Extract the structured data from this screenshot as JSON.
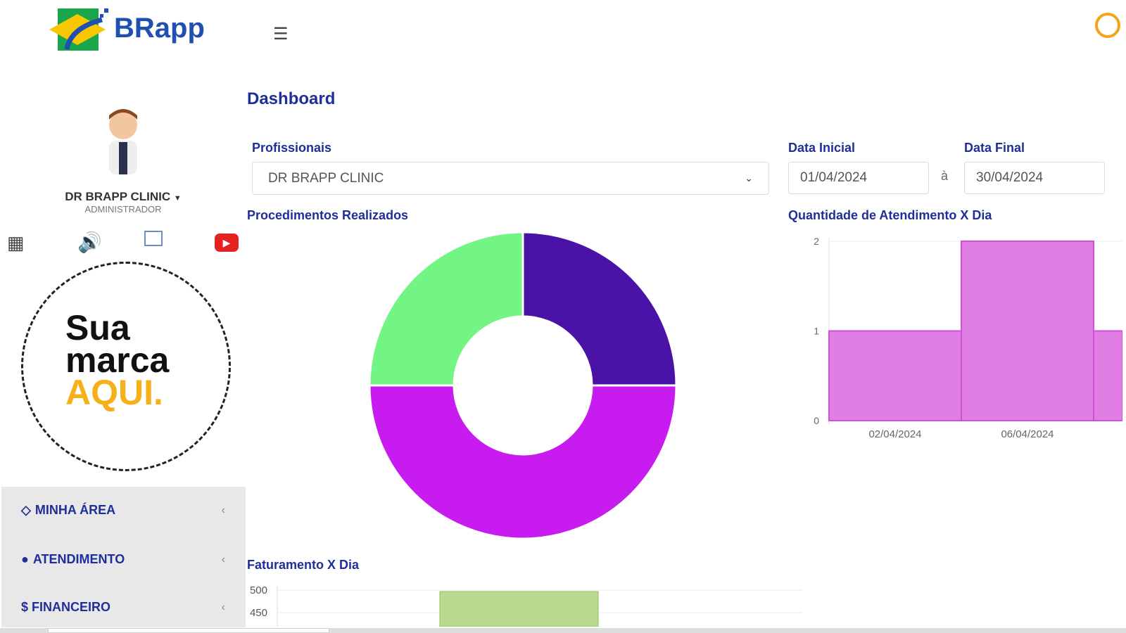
{
  "header": {
    "brand": "BRapp",
    "menu_icon": "hamburger-icon",
    "clock_icon": "clock-icon"
  },
  "user": {
    "name": "DR BRAPP CLINIC",
    "role": "ADMINISTRADOR"
  },
  "toolbar_icons": [
    "qrcode-icon",
    "speaker-icon",
    "chat-icon",
    "youtube-icon"
  ],
  "brand_placeholder": {
    "line1": "Sua",
    "line2": "marca",
    "line3": "AQUI."
  },
  "sidebar": {
    "items": [
      {
        "label": "MINHA ÁREA",
        "icon": "diamond-icon"
      },
      {
        "label": "ATENDIMENTO",
        "icon": "users-icon"
      },
      {
        "label": "$ FINANCEIRO",
        "icon": "dollar-icon"
      }
    ]
  },
  "page": {
    "title": "Dashboard"
  },
  "filters": {
    "profissionais_label": "Profissionais",
    "profissionais_value": "DR BRAPP CLINIC",
    "data_inicial_label": "Data Inicial",
    "data_inicial_value": "01/04/2024",
    "separator": "à",
    "data_final_label": "Data Final",
    "data_final_value": "30/04/2024"
  },
  "chart_data": [
    {
      "type": "pie",
      "title": "Procedimentos Realizados",
      "donut": true,
      "values": [
        25,
        50,
        25
      ],
      "colors": [
        "#4a12a6",
        "#c81bef",
        "#72f585"
      ]
    },
    {
      "type": "bar",
      "title": "Quantidade de Atendimento X Dia",
      "categories": [
        "02/04/2024",
        "06/04/2024",
        ""
      ],
      "values": [
        1,
        2,
        1
      ],
      "ylim": [
        0,
        2
      ],
      "yticks": [
        "0",
        "1",
        "2"
      ],
      "color": "#e07ee3"
    },
    {
      "type": "bar",
      "title": "Faturamento X Dia",
      "yticks": [
        "500",
        "450"
      ],
      "values": [
        500
      ],
      "color": "#b9d98f"
    }
  ]
}
